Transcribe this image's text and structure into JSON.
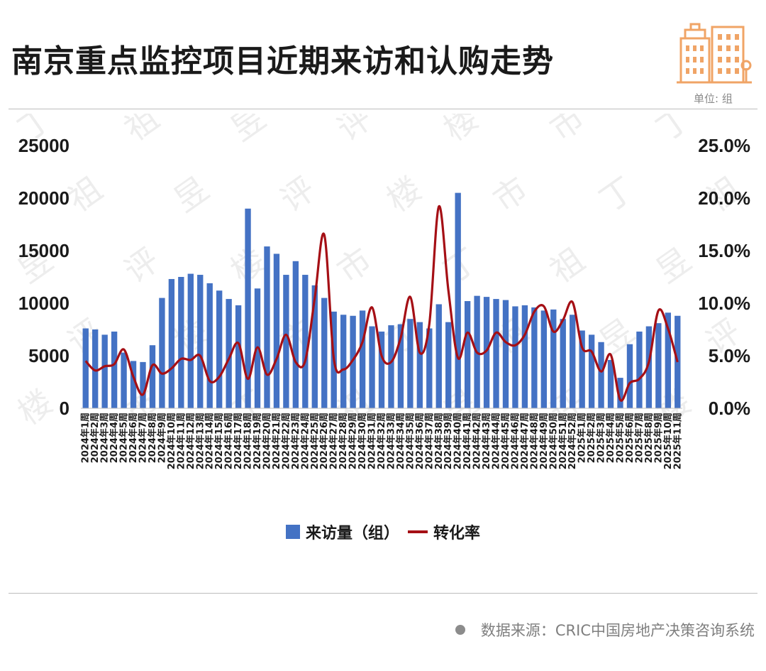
{
  "header": {
    "title": "南京重点监控项目近期来访和认购走势",
    "unit": "单位: 组"
  },
  "legend": {
    "bars_label": "来访量（组）",
    "line_label": "转化率"
  },
  "footer": {
    "source": "数据来源：CRIC中国房地产决策咨询系统"
  },
  "watermark": [
    "丁",
    "祖",
    "昱",
    "评",
    "楼",
    "市"
  ],
  "colors": {
    "bar": "#4472c4",
    "line": "#a50f15",
    "logo": "#f0a466"
  },
  "chart_data": {
    "type": "bar",
    "categories": [
      "2024年1周",
      "2024年2周",
      "2024年3周",
      "2024年4周",
      "2024年5周",
      "2024年6周",
      "2024年7周",
      "2024年8周",
      "2024年9周",
      "2024年10周",
      "2024年11周",
      "2024年12周",
      "2024年13周",
      "2024年14周",
      "2024年15周",
      "2024年16周",
      "2024年17周",
      "2024年18周",
      "2024年19周",
      "2024年20周",
      "2024年21周",
      "2024年22周",
      "2024年23周",
      "2024年24周",
      "2024年25周",
      "2024年26周",
      "2024年27周",
      "2024年28周",
      "2024年29周",
      "2024年30周",
      "2024年31周",
      "2024年32周",
      "2024年33周",
      "2024年34周",
      "2024年35周",
      "2024年36周",
      "2024年37周",
      "2024年38周",
      "2024年39周",
      "2024年40周",
      "2024年41周",
      "2024年42周",
      "2024年43周",
      "2024年44周",
      "2024年45周",
      "2024年46周",
      "2024年47周",
      "2024年48周",
      "2024年49周",
      "2024年50周",
      "2024年51周",
      "2024年52周",
      "2025年1周",
      "2025年2周",
      "2025年3周",
      "2025年4周",
      "2025年5周",
      "2025年6周",
      "2025年7周",
      "2025年8周",
      "2025年9周",
      "2025年10周",
      "2025年11周"
    ],
    "series": [
      {
        "name": "来访量（组）",
        "axis": "left",
        "type": "bar",
        "values": [
          7600,
          7500,
          7000,
          7300,
          5300,
          4500,
          4400,
          6000,
          10500,
          12300,
          12500,
          12800,
          12700,
          11900,
          11200,
          10400,
          9800,
          19000,
          11400,
          15400,
          14700,
          12700,
          14000,
          12700,
          11700,
          10500,
          9200,
          8900,
          8800,
          9300,
          7800,
          7300,
          7900,
          8000,
          8500,
          8200,
          7600,
          9900,
          8200,
          20500,
          10200,
          10700,
          10600,
          10400,
          10300,
          9700,
          9800,
          9600,
          9300,
          9400,
          8500,
          8900,
          7400,
          7000,
          6300,
          4600,
          2900,
          6100,
          7300,
          7800,
          8100,
          9100,
          8800
        ]
      },
      {
        "name": "转化率",
        "axis": "right",
        "type": "line",
        "values": [
          4.5,
          3.6,
          4.0,
          4.2,
          5.6,
          3.0,
          1.3,
          4.1,
          3.3,
          3.8,
          4.7,
          4.6,
          5.0,
          2.6,
          3.0,
          4.7,
          6.2,
          2.8,
          5.8,
          3.2,
          4.7,
          7.0,
          4.4,
          4.5,
          10.5,
          16.5,
          4.7,
          3.7,
          4.6,
          6.3,
          9.6,
          5.0,
          4.4,
          6.7,
          10.6,
          5.3,
          8.0,
          19.2,
          11.2,
          4.8,
          7.2,
          5.3,
          5.5,
          7.2,
          6.3,
          6.0,
          7.0,
          9.2,
          9.7,
          7.3,
          8.4,
          10.1,
          5.8,
          5.4,
          3.5,
          5.1,
          0.8,
          2.4,
          2.8,
          4.4,
          9.3,
          7.6,
          4.4
        ]
      }
    ],
    "y_left": {
      "range": [
        0,
        25000
      ],
      "ticks": [
        "0",
        "5000",
        "10000",
        "15000",
        "20000",
        "25000"
      ]
    },
    "y_right": {
      "range": [
        0,
        25
      ],
      "ticks": [
        "0.0%",
        "5.0%",
        "10.0%",
        "15.0%",
        "20.0%",
        "25.0%"
      ]
    },
    "grid": false,
    "legend_position": "bottom"
  }
}
